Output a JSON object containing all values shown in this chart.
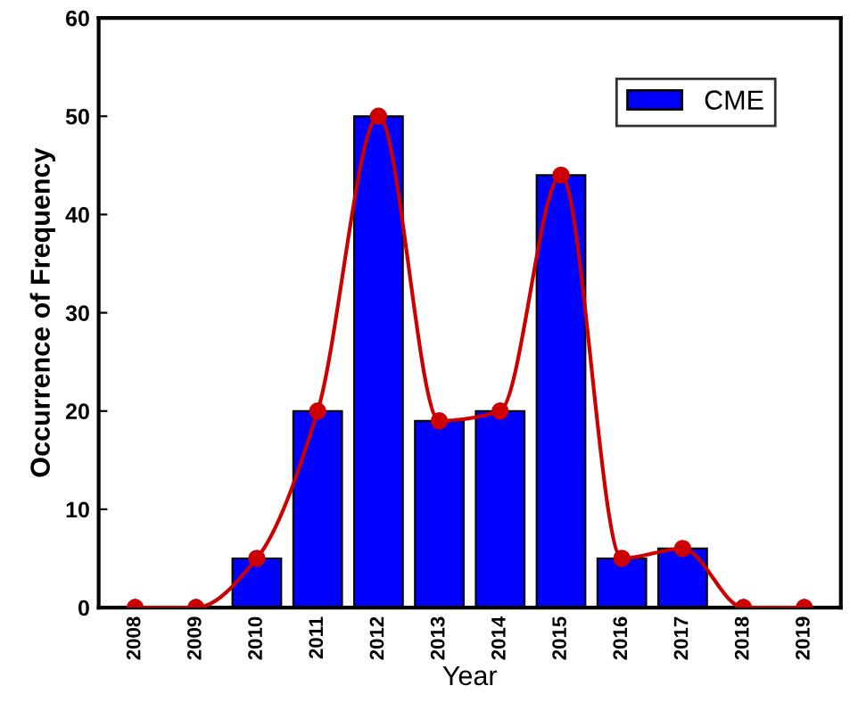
{
  "chart_data": {
    "type": "bar",
    "xlabel": "Year",
    "ylabel": "Occurrence of Frequency",
    "categories": [
      "2008",
      "2009",
      "2010",
      "2011",
      "2012",
      "2013",
      "2014",
      "2015",
      "2016",
      "2017",
      "2018",
      "2019"
    ],
    "series": [
      {
        "name": "CME",
        "color": "#0000ff",
        "values": [
          0,
          0,
          5,
          20,
          50,
          19,
          20,
          44,
          5,
          6,
          0,
          0
        ]
      },
      {
        "type": "line",
        "color": "#cc0000",
        "marker": "circle",
        "line_style": "solid",
        "values": [
          0,
          0,
          5,
          20,
          50,
          19,
          20,
          44,
          5,
          6,
          0,
          0
        ]
      }
    ],
    "ylim": [
      0,
      60
    ],
    "yticks": [
      0,
      10,
      20,
      30,
      40,
      50,
      60
    ],
    "grid": false,
    "legend": "top right"
  }
}
